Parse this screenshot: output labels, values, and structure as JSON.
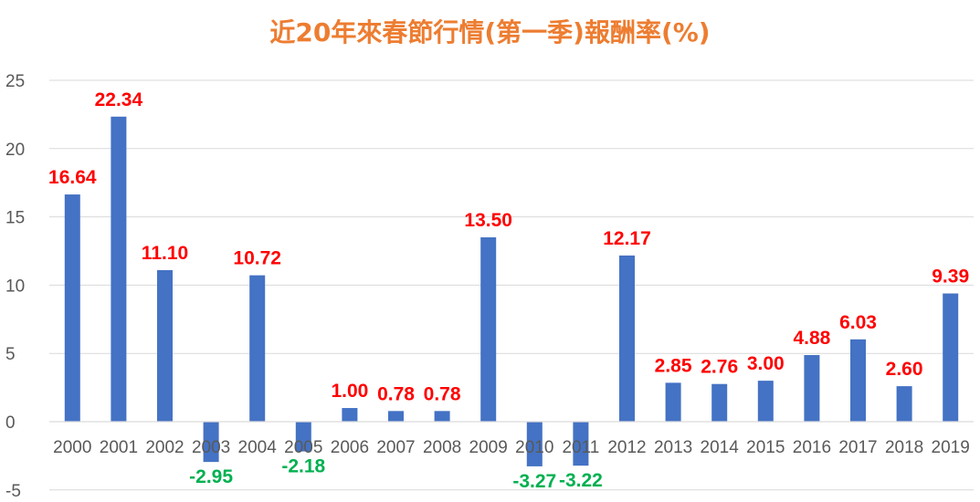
{
  "chart_data": {
    "type": "bar",
    "title": "近20年來春節行情(第一季)報酬率(%)",
    "xlabel": "",
    "ylabel": "",
    "categories": [
      "2000",
      "2001",
      "2002",
      "2003",
      "2004",
      "2005",
      "2006",
      "2007",
      "2008",
      "2009",
      "2010",
      "2011",
      "2012",
      "2013",
      "2014",
      "2015",
      "2016",
      "2017",
      "2018",
      "2019"
    ],
    "values": [
      16.64,
      22.34,
      11.1,
      -2.95,
      10.72,
      -2.18,
      1.0,
      0.78,
      0.78,
      13.5,
      -3.27,
      -3.22,
      12.17,
      2.85,
      2.76,
      3.0,
      4.88,
      6.03,
      2.6,
      9.39
    ],
    "data_labels": [
      "16.64",
      "22.34",
      "11.10",
      "-2.95",
      "10.72",
      "-2.18",
      "1.00",
      "0.78",
      "0.78",
      "13.50",
      "-3.27",
      "-3.22",
      "12.17",
      "2.85",
      "2.76",
      "3.00",
      "4.88",
      "6.03",
      "2.60",
      "9.39"
    ],
    "ylim": [
      -5,
      25
    ],
    "yticks": [
      "-5",
      "0",
      "5",
      "10",
      "15",
      "20",
      "25"
    ],
    "grid": true,
    "legend": "none",
    "colors": {
      "bar": "#4472C4",
      "label_positive": "#FF0000",
      "label_negative": "#00B050",
      "title": "#ED7D31",
      "grid": "#D9D9D9",
      "axis_text": "#595959"
    }
  }
}
